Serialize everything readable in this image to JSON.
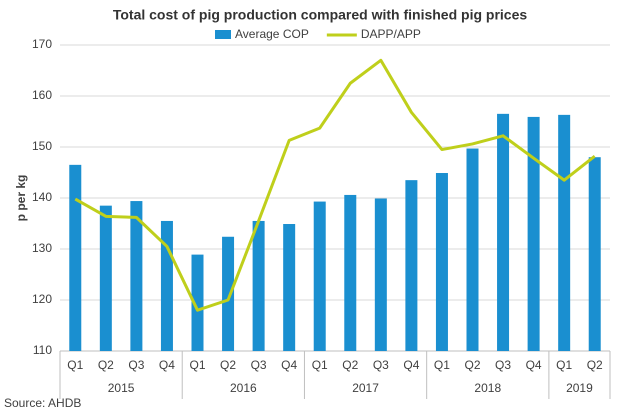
{
  "chart_data": {
    "type": "bar_line",
    "title": "Total cost of pig production compared with finished pig prices",
    "y_label": "p per kg",
    "source": "Source: AHDB",
    "groups": [
      {
        "label": "2015",
        "categories": [
          "Q1",
          "Q2",
          "Q3",
          "Q4"
        ]
      },
      {
        "label": "2016",
        "categories": [
          "Q1",
          "Q2",
          "Q3",
          "Q4"
        ]
      },
      {
        "label": "2017",
        "categories": [
          "Q1",
          "Q2",
          "Q3",
          "Q4"
        ]
      },
      {
        "label": "2018",
        "categories": [
          "Q1",
          "Q2",
          "Q3",
          "Q4"
        ]
      },
      {
        "label": "2019",
        "categories": [
          "Q1",
          "Q2"
        ]
      }
    ],
    "series": [
      {
        "name": "Average COP",
        "type": "bar",
        "color": "#1a8fd0",
        "values": [
          146.5,
          138.5,
          139.4,
          135.5,
          128.9,
          132.4,
          135.5,
          134.9,
          139.3,
          140.6,
          139.9,
          143.5,
          144.9,
          149.7,
          156.5,
          155.9,
          156.3,
          148
        ]
      },
      {
        "name": "DAPP/APP",
        "type": "line",
        "color": "#bfcf1b",
        "values": [
          139.8,
          136.4,
          136.2,
          130.5,
          118,
          120,
          135.5,
          151.3,
          153.7,
          162.5,
          167,
          156.8,
          149.5,
          150.6,
          152.2,
          147.8,
          143.5,
          148.2
        ]
      }
    ],
    "ylim": [
      110,
      170
    ],
    "yticks": [
      110,
      120,
      130,
      140,
      150,
      160,
      170
    ],
    "grid": true,
    "legend": "top"
  }
}
